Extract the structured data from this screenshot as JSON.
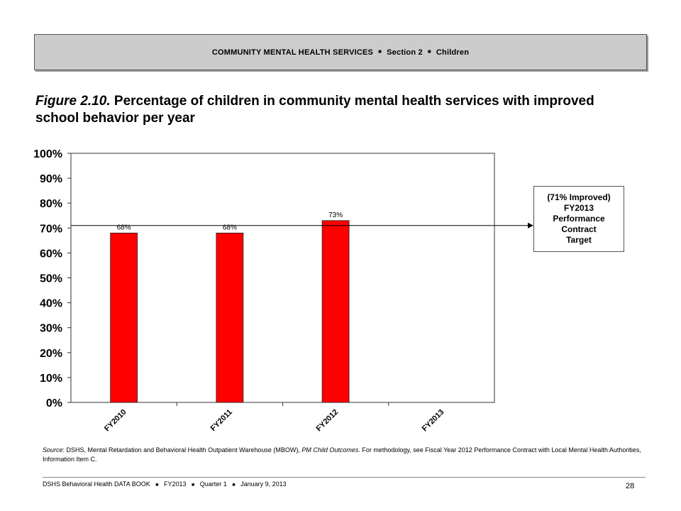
{
  "header": {
    "section": "COMMUNITY MENTAL HEALTH SERVICES",
    "section_part": "Section 2",
    "topic": "Children",
    "separator": "■"
  },
  "figure": {
    "label": "Figure 2.10.",
    "title": "Percentage of children in community mental health services with improved school behavior per year"
  },
  "chart_data": {
    "type": "bar",
    "categories": [
      "FY2010",
      "FY2011",
      "FY2012",
      "FY2013"
    ],
    "values": [
      68,
      68,
      73,
      null
    ],
    "data_labels": [
      "68%",
      "68%",
      "73%",
      ""
    ],
    "ylim": [
      0,
      100
    ],
    "yticks": [
      0,
      10,
      20,
      30,
      40,
      50,
      60,
      70,
      80,
      90,
      100
    ],
    "ytick_labels": [
      "0%",
      "10%",
      "20%",
      "30%",
      "40%",
      "50%",
      "60%",
      "70%",
      "80%",
      "90%",
      "100%"
    ],
    "target": 71,
    "grid": false,
    "bar_color": "#ff0000"
  },
  "target_box": {
    "lines": [
      "(71% Improved)",
      "FY2013",
      "Performance",
      "Contract",
      "Target"
    ]
  },
  "source": {
    "label": "Source",
    "text_a": ": DSHS, Mental Retardation and Behavioral Health Outpatient Warehouse (MBOW), ",
    "italic": "PM Child Outcomes",
    "text_b": ". For methodology, see Fiscal Year 2012 Performance Contract with Local Mental Health Authorities, Information Item C."
  },
  "footer": {
    "book": "DSHS Behavioral Health DATA BOOK",
    "fiscal_year": "FY2013",
    "quarter": "Quarter 1",
    "date": "January  9, 2013",
    "separator": "■",
    "page_number": "28"
  }
}
